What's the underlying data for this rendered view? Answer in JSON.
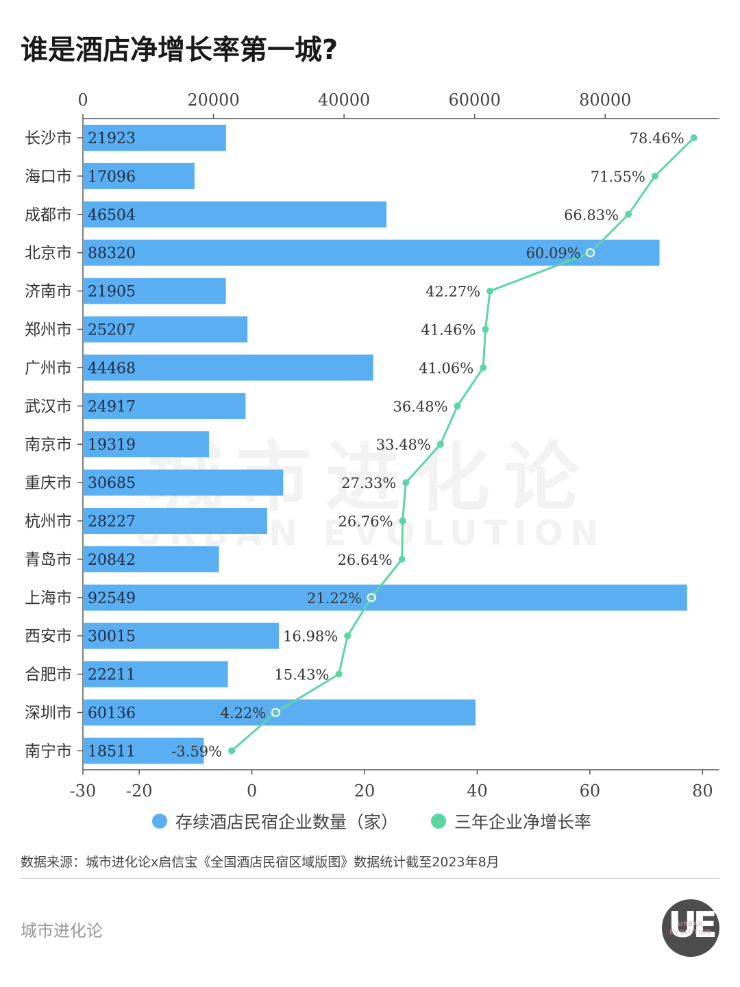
{
  "title": "谁是酒店净增长率第一城?",
  "chart_data": {
    "type": "bar+line",
    "categories": [
      "长沙市",
      "海口市",
      "成都市",
      "北京市",
      "济南市",
      "郑州市",
      "广州市",
      "武汉市",
      "南京市",
      "重庆市",
      "杭州市",
      "青岛市",
      "上海市",
      "西安市",
      "合肥市",
      "深圳市",
      "南宁市"
    ],
    "series": [
      {
        "name": "存续酒店民宿企业数量（家）",
        "type": "bar",
        "axis": "top",
        "color": "#5aaef2",
        "values": [
          21923,
          17096,
          46504,
          88320,
          21905,
          25207,
          44468,
          24917,
          19319,
          30685,
          28227,
          20842,
          92549,
          30015,
          22211,
          60136,
          18511
        ]
      },
      {
        "name": "三年企业净增长率",
        "type": "line",
        "axis": "bottom",
        "unit": "%",
        "color": "#5ad6a4",
        "values": [
          78.46,
          71.55,
          66.83,
          60.09,
          42.27,
          41.46,
          41.06,
          36.48,
          33.48,
          27.33,
          26.76,
          26.64,
          21.22,
          16.98,
          15.43,
          4.22,
          -3.59
        ],
        "labels": [
          "78.46%",
          "71.55%",
          "66.83%",
          "60.09%",
          "42.27%",
          "41.46%",
          "41.06%",
          "36.48%",
          "33.48%",
          "27.33%",
          "26.76%",
          "26.64%",
          "21.22%",
          "16.98%",
          "15.43%",
          "4.22%",
          "-3.59%"
        ]
      }
    ],
    "top_axis": {
      "ticks": [
        0,
        20000,
        40000,
        60000,
        80000
      ],
      "range": [
        0,
        97500
      ]
    },
    "bottom_axis": {
      "ticks": [
        -30,
        -20,
        0,
        20,
        40,
        60,
        80
      ],
      "range": [
        -30,
        83
      ]
    }
  },
  "watermark": {
    "cn": "城市进化论",
    "en": "URBAN EVOLUTION"
  },
  "legend": [
    "存续酒店民宿企业数量（家）",
    "三年企业净增长率"
  ],
  "source": "数据来源：城市进化论x启信宝《全国酒店民宿区域版图》数据统计截至2023年8月",
  "footer": {
    "brand": "城市进化论"
  },
  "logo": {
    "mark": "UE",
    "line1": "URBAN",
    "line2": "EVOLUTION"
  },
  "colors": {
    "bar": "#5aaef2",
    "line": "#5ad6a4",
    "axis": "#555555",
    "text": "#333333"
  }
}
